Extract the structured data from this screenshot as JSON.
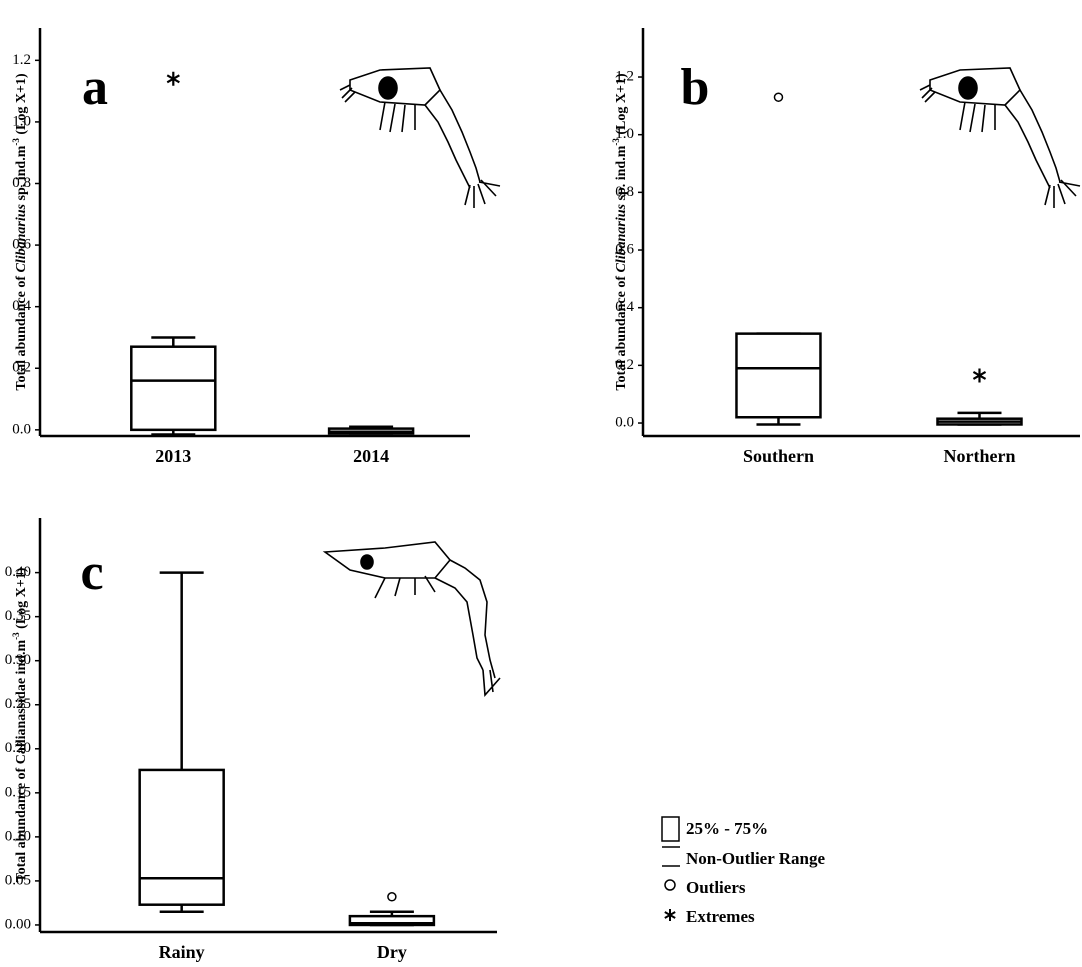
{
  "chart_data": [
    {
      "type": "box",
      "panel": "a",
      "ylabel": [
        {
          "text": "Total abundance of "
        },
        {
          "text": "Clibanarius",
          "style": "italic"
        },
        {
          "text": " sp. ind.m"
        },
        {
          "text": "-3",
          "style": "superscript"
        },
        {
          "text": "  (Log X+1)"
        }
      ],
      "categories": [
        "2013",
        "2014"
      ],
      "boxes": [
        {
          "min": -0.015,
          "q1": 0.0,
          "median": 0.16,
          "q3": 0.27,
          "max": 0.3
        },
        {
          "min": -0.012,
          "q1": -0.012,
          "median": -0.006,
          "q3": 0.004,
          "max": 0.01
        }
      ],
      "outliers": [
        [],
        []
      ],
      "extremes": [
        [
          1.14
        ],
        []
      ],
      "ylim": [
        -0.02,
        1.305
      ],
      "yticks": [
        {
          "value": 0,
          "label": "0.0"
        },
        0.2,
        0.4,
        0.6,
        0.8,
        {
          "value": 1,
          "label": "1.0"
        },
        1.2
      ],
      "color": "#000000"
    },
    {
      "type": "box",
      "panel": "b",
      "ylabel": [
        {
          "text": "Total abundance of "
        },
        {
          "text": "Clibanarius",
          "style": "italic"
        },
        {
          "text": " sp. ind.m"
        },
        {
          "text": "-3",
          "style": "superscript"
        },
        {
          "text": "  (Log X+1)"
        }
      ],
      "categories": [
        "Southern",
        "Northern"
      ],
      "boxes": [
        {
          "min": -0.005,
          "q1": 0.02,
          "median": 0.19,
          "q3": 0.31,
          "max": 0.31
        },
        {
          "min": -0.005,
          "q1": -0.005,
          "median": 0.005,
          "q3": 0.015,
          "max": 0.035
        }
      ],
      "outliers": [
        [
          1.13
        ],
        []
      ],
      "extremes": [
        [],
        [
          0.165
        ]
      ],
      "ylim": [
        -0.045,
        1.37
      ],
      "yticks": [
        {
          "value": 0,
          "label": "0.0"
        },
        0.2,
        0.4,
        0.6,
        0.8,
        {
          "value": 1,
          "label": "1.0"
        },
        1.2
      ],
      "color": "#000000"
    },
    {
      "type": "box",
      "panel": "c",
      "ylabel": [
        {
          "text": "Total abundance of Callianassidae ind.m"
        },
        {
          "text": "-3",
          "style": "superscript"
        },
        {
          "text": "  (Log X+1)"
        }
      ],
      "categories": [
        "Rainy",
        "Dry"
      ],
      "boxes": [
        {
          "min": 0.015,
          "q1": 0.023,
          "median": 0.053,
          "q3": 0.176,
          "max": 0.4
        },
        {
          "min": 0.0,
          "q1": 0.0,
          "median": 0.002,
          "q3": 0.01,
          "max": 0.015
        }
      ],
      "outliers": [
        [],
        [
          0.032
        ]
      ],
      "extremes": [
        [],
        []
      ],
      "ylim": [
        -0.008,
        0.462
      ],
      "yticks": [
        {
          "value": 0,
          "label": "0.00"
        },
        0.05,
        {
          "value": 0.1,
          "label": "0.10"
        },
        0.15,
        {
          "value": 0.2,
          "label": "0.20"
        },
        0.25,
        {
          "value": 0.3,
          "label": "0.30"
        },
        0.35,
        {
          "value": 0.4,
          "label": "0.40"
        }
      ],
      "color": "#000000"
    }
  ],
  "legend": {
    "items": [
      "25% - 75%",
      "Non-Outlier Range",
      "Outliers",
      "Extremes"
    ]
  }
}
